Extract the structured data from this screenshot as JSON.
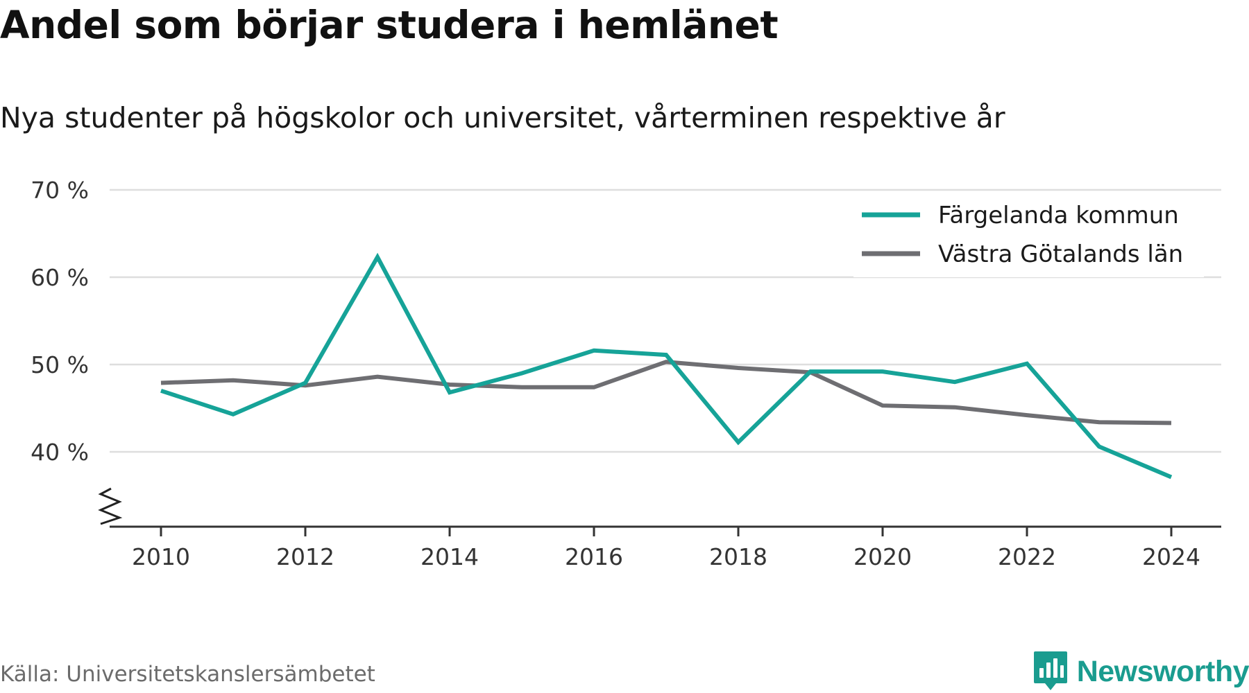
{
  "header": {
    "title": "Andel som börjar studera i hemlänet",
    "subtitle": "Nya studenter på högskolor och universitet, vårterminen respektive år"
  },
  "footer": {
    "source": "Källa: Universitetskanslersämbetet",
    "brand": "Newsworthy"
  },
  "colors": {
    "series_1": "#16a398",
    "series_2": "#6e6e72",
    "grid": "#dedede",
    "axis": "#333333",
    "brand": "#1a9c8f"
  },
  "chart_data": {
    "type": "line",
    "title": "Andel som börjar studera i hemlänet",
    "subtitle": "Nya studenter på högskolor och universitet, vårterminen respektive år",
    "xlabel": "",
    "ylabel": "",
    "x": [
      2010,
      2011,
      2012,
      2013,
      2014,
      2015,
      2016,
      2017,
      2018,
      2019,
      2020,
      2021,
      2022,
      2023,
      2024
    ],
    "x_ticks": [
      2010,
      2012,
      2014,
      2016,
      2018,
      2020,
      2022,
      2024
    ],
    "x_tick_labels": [
      "2010",
      "2012",
      "2014",
      "2016",
      "2018",
      "2020",
      "2022",
      "2024"
    ],
    "y_ticks": [
      40,
      50,
      60,
      70
    ],
    "y_tick_labels": [
      "40 %",
      "50 %",
      "60 %",
      "70 %"
    ],
    "ylim": [
      31.5,
      70
    ],
    "y_axis_break": true,
    "grid": true,
    "legend_position": "top-right",
    "series": [
      {
        "name": "Färgelanda kommun",
        "color": "#16a398",
        "values": [
          47.0,
          44.3,
          47.9,
          62.3,
          46.8,
          49.0,
          51.6,
          51.1,
          41.1,
          49.2,
          49.2,
          48.0,
          50.1,
          40.6,
          37.1
        ]
      },
      {
        "name": "Västra Götalands län",
        "color": "#6e6e72",
        "values": [
          47.9,
          48.2,
          47.6,
          48.6,
          47.7,
          47.4,
          47.4,
          50.3,
          49.6,
          49.1,
          45.3,
          45.1,
          44.2,
          43.4,
          43.3
        ]
      }
    ]
  }
}
